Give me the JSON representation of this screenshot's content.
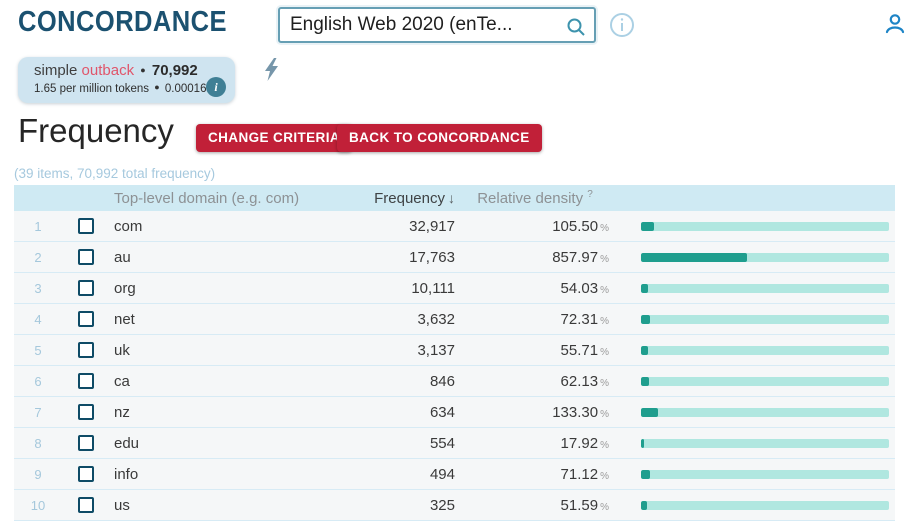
{
  "header": {
    "app_title": "CONCORDANCE",
    "corpus_selector": {
      "value": "English Web 2020 (enTe...",
      "icon": "search-icon"
    },
    "info_icon": "info-icon",
    "user_icon": "person-icon"
  },
  "query_chip": {
    "prefix": "simple",
    "term": "outback",
    "bullet": "●",
    "total_frequency": "70,992",
    "line2_left": "1.65 per million tokens",
    "line2_right": "0.00016%",
    "info_label": "i"
  },
  "quick_action_icon": "lightning-icon",
  "page": {
    "title": "Frequency",
    "buttons": [
      {
        "label": "CHANGE CRITERIA"
      },
      {
        "label": "BACK TO CONCORDANCE"
      }
    ],
    "summary": "(39 items, 70,992 total frequency)"
  },
  "table": {
    "columns": {
      "domain": "Top-level domain (e.g. com)",
      "frequency": "Frequency",
      "sort_arrow": "↓",
      "relative_density": "Relative density",
      "help_mark": "?"
    },
    "percent_suffix": "%",
    "bar_scale_max": 2000,
    "rows": [
      {
        "index": "1",
        "domain": "com",
        "frequency": "32,917",
        "relative_density": "105.50",
        "density_value": 105.5
      },
      {
        "index": "2",
        "domain": "au",
        "frequency": "17,763",
        "relative_density": "857.97",
        "density_value": 857.97
      },
      {
        "index": "3",
        "domain": "org",
        "frequency": "10,111",
        "relative_density": "54.03",
        "density_value": 54.03
      },
      {
        "index": "4",
        "domain": "net",
        "frequency": "3,632",
        "relative_density": "72.31",
        "density_value": 72.31
      },
      {
        "index": "5",
        "domain": "uk",
        "frequency": "3,137",
        "relative_density": "55.71",
        "density_value": 55.71
      },
      {
        "index": "6",
        "domain": "ca",
        "frequency": "846",
        "relative_density": "62.13",
        "density_value": 62.13
      },
      {
        "index": "7",
        "domain": "nz",
        "frequency": "634",
        "relative_density": "133.30",
        "density_value": 133.3
      },
      {
        "index": "8",
        "domain": "edu",
        "frequency": "554",
        "relative_density": "17.92",
        "density_value": 17.92
      },
      {
        "index": "9",
        "domain": "info",
        "frequency": "494",
        "relative_density": "71.12",
        "density_value": 71.12
      },
      {
        "index": "10",
        "domain": "us",
        "frequency": "325",
        "relative_density": "51.59",
        "density_value": 51.59
      }
    ]
  },
  "colors": {
    "brand_dark_teal": "#1b5170",
    "accent_red_button": "#c12038",
    "term_red": "#e0556a",
    "chip_background": "#cfe4f0",
    "table_header_band": "#cfeaf3",
    "row_background": "#f5f7f8",
    "bar_fill": "#1f9e8e",
    "bar_track": "#b0e7e0",
    "light_blue_text": "#a6c9de"
  }
}
